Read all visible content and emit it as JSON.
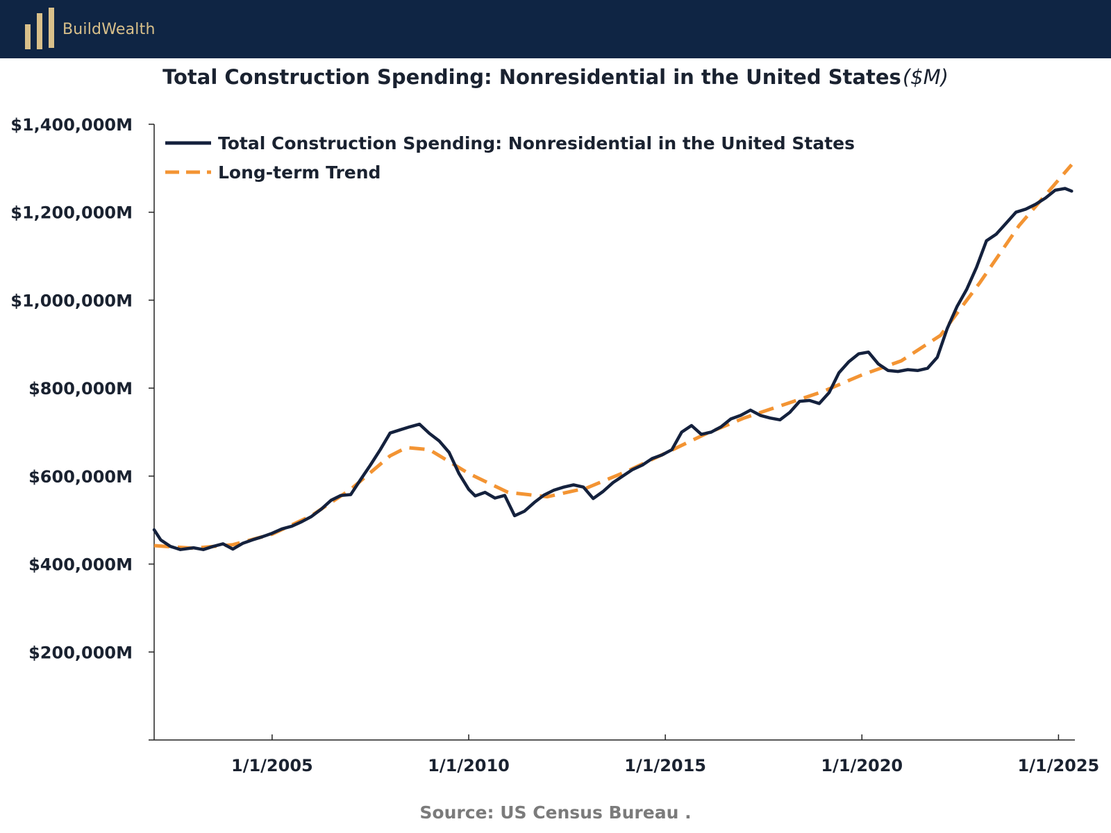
{
  "header": {
    "brand_name": "BuildWealth",
    "logo_icon": "bar-columns-logo-icon",
    "background_color": "#0f2544",
    "brand_color": "#d9c08a"
  },
  "title": "Total Construction Spending: Nonresidential in the United States",
  "title_unit": "($M)",
  "source": "Source:  US Census Bureau .",
  "chart_data": {
    "type": "line",
    "title": "Total Construction Spending: Nonresidential in the United States ($M)",
    "xlabel": "",
    "ylabel": "",
    "x_range": [
      "2002-01-01",
      "2025-06-01"
    ],
    "ylim": [
      0,
      1400000
    ],
    "yticks": [
      200000,
      400000,
      600000,
      800000,
      1000000,
      1200000,
      1400000
    ],
    "ytick_labels": [
      "$200,000M",
      "$400,000M",
      "$600,000M",
      "$800,000M",
      "$1,000,000M",
      "$1,200,000M",
      "$1,400,000M"
    ],
    "xticks": [
      "2005-01-01",
      "2010-01-01",
      "2015-01-01",
      "2020-01-01",
      "2025-01-01"
    ],
    "xtick_labels": [
      "1/1/2005",
      "1/1/2010",
      "1/1/2015",
      "1/1/2020",
      "1/1/2025"
    ],
    "grid": false,
    "legend_position": "top-left",
    "series": [
      {
        "name": "Total Construction Spending: Nonresidential in the United States",
        "color": "#14213d",
        "style": "solid",
        "points": [
          [
            "2002-01",
            478000
          ],
          [
            "2002-03",
            455000
          ],
          [
            "2002-06",
            440000
          ],
          [
            "2002-09",
            433000
          ],
          [
            "2003-01",
            437000
          ],
          [
            "2003-04",
            433000
          ],
          [
            "2003-07",
            440000
          ],
          [
            "2003-10",
            446000
          ],
          [
            "2004-01",
            434000
          ],
          [
            "2004-04",
            447000
          ],
          [
            "2004-07",
            455000
          ],
          [
            "2004-10",
            462000
          ],
          [
            "2005-01",
            470000
          ],
          [
            "2005-04",
            480000
          ],
          [
            "2005-07",
            486000
          ],
          [
            "2005-10",
            496000
          ],
          [
            "2006-01",
            508000
          ],
          [
            "2006-04",
            525000
          ],
          [
            "2006-07",
            545000
          ],
          [
            "2006-10",
            556000
          ],
          [
            "2007-01",
            558000
          ],
          [
            "2007-04",
            592000
          ],
          [
            "2007-07",
            625000
          ],
          [
            "2007-10",
            660000
          ],
          [
            "2008-01",
            698000
          ],
          [
            "2008-04",
            705000
          ],
          [
            "2008-07",
            712000
          ],
          [
            "2008-10",
            718000
          ],
          [
            "2009-01",
            697000
          ],
          [
            "2009-04",
            680000
          ],
          [
            "2009-07",
            654000
          ],
          [
            "2009-10",
            606000
          ],
          [
            "2010-01",
            570000
          ],
          [
            "2010-03",
            555000
          ],
          [
            "2010-06",
            563000
          ],
          [
            "2010-09",
            550000
          ],
          [
            "2010-12",
            556000
          ],
          [
            "2011-03",
            510000
          ],
          [
            "2011-06",
            520000
          ],
          [
            "2011-09",
            540000
          ],
          [
            "2011-12",
            557000
          ],
          [
            "2012-03",
            568000
          ],
          [
            "2012-06",
            575000
          ],
          [
            "2012-09",
            580000
          ],
          [
            "2012-12",
            575000
          ],
          [
            "2013-03",
            549000
          ],
          [
            "2013-06",
            565000
          ],
          [
            "2013-09",
            585000
          ],
          [
            "2013-12",
            600000
          ],
          [
            "2014-03",
            615000
          ],
          [
            "2014-06",
            625000
          ],
          [
            "2014-09",
            640000
          ],
          [
            "2014-12",
            648000
          ],
          [
            "2015-03",
            660000
          ],
          [
            "2015-06",
            700000
          ],
          [
            "2015-09",
            715000
          ],
          [
            "2015-12",
            695000
          ],
          [
            "2016-03",
            700000
          ],
          [
            "2016-06",
            712000
          ],
          [
            "2016-09",
            730000
          ],
          [
            "2016-12",
            738000
          ],
          [
            "2017-03",
            750000
          ],
          [
            "2017-06",
            738000
          ],
          [
            "2017-09",
            732000
          ],
          [
            "2017-12",
            728000
          ],
          [
            "2018-03",
            745000
          ],
          [
            "2018-06",
            770000
          ],
          [
            "2018-09",
            772000
          ],
          [
            "2018-12",
            765000
          ],
          [
            "2019-03",
            790000
          ],
          [
            "2019-06",
            835000
          ],
          [
            "2019-09",
            860000
          ],
          [
            "2019-12",
            878000
          ],
          [
            "2020-03",
            882000
          ],
          [
            "2020-06",
            855000
          ],
          [
            "2020-09",
            840000
          ],
          [
            "2020-12",
            838000
          ],
          [
            "2021-03",
            842000
          ],
          [
            "2021-06",
            840000
          ],
          [
            "2021-09",
            845000
          ],
          [
            "2021-12",
            870000
          ],
          [
            "2022-03",
            935000
          ],
          [
            "2022-06",
            985000
          ],
          [
            "2022-09",
            1025000
          ],
          [
            "2022-12",
            1075000
          ],
          [
            "2023-03",
            1135000
          ],
          [
            "2023-06",
            1150000
          ],
          [
            "2023-09",
            1175000
          ],
          [
            "2023-12",
            1200000
          ],
          [
            "2024-03",
            1207000
          ],
          [
            "2024-06",
            1218000
          ],
          [
            "2024-09",
            1232000
          ],
          [
            "2024-12",
            1250000
          ],
          [
            "2025-03",
            1254000
          ],
          [
            "2025-05",
            1248000
          ]
        ]
      },
      {
        "name": "Long-term Trend",
        "color": "#f39433",
        "style": "dashed",
        "points": [
          [
            "2002-01",
            442000
          ],
          [
            "2003-01",
            436000
          ],
          [
            "2004-01",
            444000
          ],
          [
            "2005-01",
            468000
          ],
          [
            "2006-01",
            510000
          ],
          [
            "2007-01",
            570000
          ],
          [
            "2008-01",
            646000
          ],
          [
            "2008-06",
            665000
          ],
          [
            "2009-01",
            660000
          ],
          [
            "2010-01",
            606000
          ],
          [
            "2011-01",
            563000
          ],
          [
            "2012-01",
            553000
          ],
          [
            "2013-01",
            573000
          ],
          [
            "2014-01",
            610000
          ],
          [
            "2015-01",
            652000
          ],
          [
            "2016-01",
            695000
          ],
          [
            "2017-01",
            732000
          ],
          [
            "2018-01",
            762000
          ],
          [
            "2019-01",
            792000
          ],
          [
            "2020-01",
            830000
          ],
          [
            "2021-01",
            862000
          ],
          [
            "2022-01",
            920000
          ],
          [
            "2023-01",
            1040000
          ],
          [
            "2024-01",
            1170000
          ],
          [
            "2025-05",
            1308000
          ]
        ]
      }
    ]
  }
}
